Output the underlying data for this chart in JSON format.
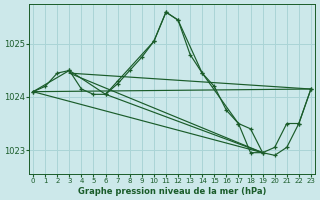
{
  "background_color": "#cce8ea",
  "grid_color": "#aad4d6",
  "line_color": "#1a5c2a",
  "title": "Graphe pression niveau de la mer (hPa)",
  "x_ticks": [
    0,
    1,
    2,
    3,
    4,
    5,
    6,
    7,
    8,
    9,
    10,
    11,
    12,
    13,
    14,
    15,
    16,
    17,
    18,
    19,
    20,
    21,
    22,
    23
  ],
  "y_ticks": [
    1023,
    1024,
    1025
  ],
  "ylim": [
    1022.55,
    1025.75
  ],
  "xlim": [
    -0.3,
    23.3
  ],
  "series": [
    {
      "x": [
        0,
        1,
        2,
        3,
        4,
        5,
        6,
        7,
        8,
        9,
        10,
        11,
        12,
        13,
        14,
        15,
        16,
        17,
        18,
        19,
        20,
        21,
        22,
        23
      ],
      "y": [
        1024.1,
        1024.2,
        1024.45,
        1024.5,
        1024.15,
        1024.05,
        1024.05,
        1024.25,
        1024.5,
        1024.75,
        1025.05,
        1025.6,
        1025.45,
        1024.8,
        1024.45,
        1024.2,
        1023.75,
        1023.5,
        1023.4,
        1022.95,
        1022.9,
        1023.05,
        1023.5,
        1024.15
      ]
    },
    {
      "x": [
        0,
        3,
        6,
        7,
        10,
        11,
        12,
        14,
        17,
        18,
        19,
        20,
        21,
        22,
        23
      ],
      "y": [
        1024.1,
        1024.5,
        1024.05,
        1024.3,
        1025.05,
        1025.6,
        1025.45,
        1024.45,
        1023.5,
        1022.95,
        1022.95,
        1023.05,
        1023.5,
        1023.5,
        1024.15
      ]
    },
    {
      "x": [
        0,
        23
      ],
      "y": [
        1024.1,
        1024.15
      ]
    },
    {
      "x": [
        3,
        23
      ],
      "y": [
        1024.45,
        1024.15
      ]
    },
    {
      "x": [
        0,
        19
      ],
      "y": [
        1024.1,
        1022.95
      ]
    },
    {
      "x": [
        3,
        19
      ],
      "y": [
        1024.45,
        1022.95
      ]
    },
    {
      "x": [
        6,
        19
      ],
      "y": [
        1024.05,
        1022.95
      ]
    }
  ]
}
